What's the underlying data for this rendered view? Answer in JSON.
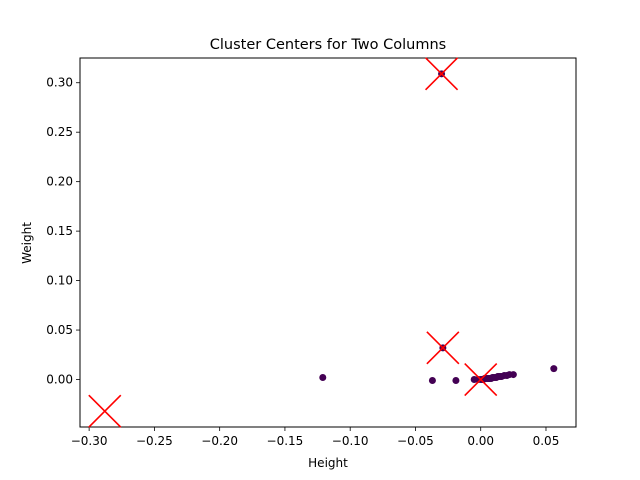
{
  "chart_data": {
    "type": "scatter",
    "title": "Cluster Centers for Two Columns",
    "xlabel": "Height",
    "ylabel": "Weight",
    "xlim": [
      -0.307,
      0.073
    ],
    "ylim": [
      -0.048,
      0.325
    ],
    "xticks": [
      -0.3,
      -0.25,
      -0.2,
      -0.15,
      -0.1,
      -0.05,
      0.0,
      0.05
    ],
    "xtick_labels": [
      "−0.30",
      "−0.25",
      "−0.20",
      "−0.15",
      "−0.10",
      "−0.05",
      "0.00",
      "0.05"
    ],
    "yticks": [
      0.0,
      0.05,
      0.1,
      0.15,
      0.2,
      0.25,
      0.3
    ],
    "ytick_labels": [
      "0.00",
      "0.05",
      "0.10",
      "0.15",
      "0.20",
      "0.25",
      "0.30"
    ],
    "grid": false,
    "legend": "none",
    "colors": {
      "points": "#440154",
      "centers": "#ff0000"
    },
    "series": [
      {
        "marker": "circle",
        "points": [
          [
            -0.121,
            0.002
          ],
          [
            -0.037,
            -0.001
          ],
          [
            -0.03,
            0.309
          ],
          [
            -0.029,
            0.032
          ],
          [
            -0.019,
            -0.001
          ],
          [
            -0.005,
            0.0
          ],
          [
            -0.002,
            0.0
          ],
          [
            0.0,
            0.0
          ],
          [
            0.001,
            0.0
          ],
          [
            0.002,
            0.0
          ],
          [
            0.003,
            0.001
          ],
          [
            0.004,
            0.001
          ],
          [
            0.005,
            0.001
          ],
          [
            0.006,
            0.001
          ],
          [
            0.007,
            0.001
          ],
          [
            0.008,
            0.001
          ],
          [
            0.009,
            0.002
          ],
          [
            0.01,
            0.002
          ],
          [
            0.011,
            0.002
          ],
          [
            0.012,
            0.002
          ],
          [
            0.013,
            0.003
          ],
          [
            0.014,
            0.003
          ],
          [
            0.015,
            0.003
          ],
          [
            0.016,
            0.003
          ],
          [
            0.018,
            0.004
          ],
          [
            0.02,
            0.004
          ],
          [
            0.022,
            0.005
          ],
          [
            0.025,
            0.005
          ],
          [
            0.056,
            0.011
          ]
        ]
      },
      {
        "marker": "x",
        "points": [
          [
            -0.03,
            0.309
          ],
          [
            -0.029,
            0.032
          ],
          [
            0.0,
            0.0
          ],
          [
            -0.288,
            -0.032
          ]
        ]
      }
    ]
  }
}
